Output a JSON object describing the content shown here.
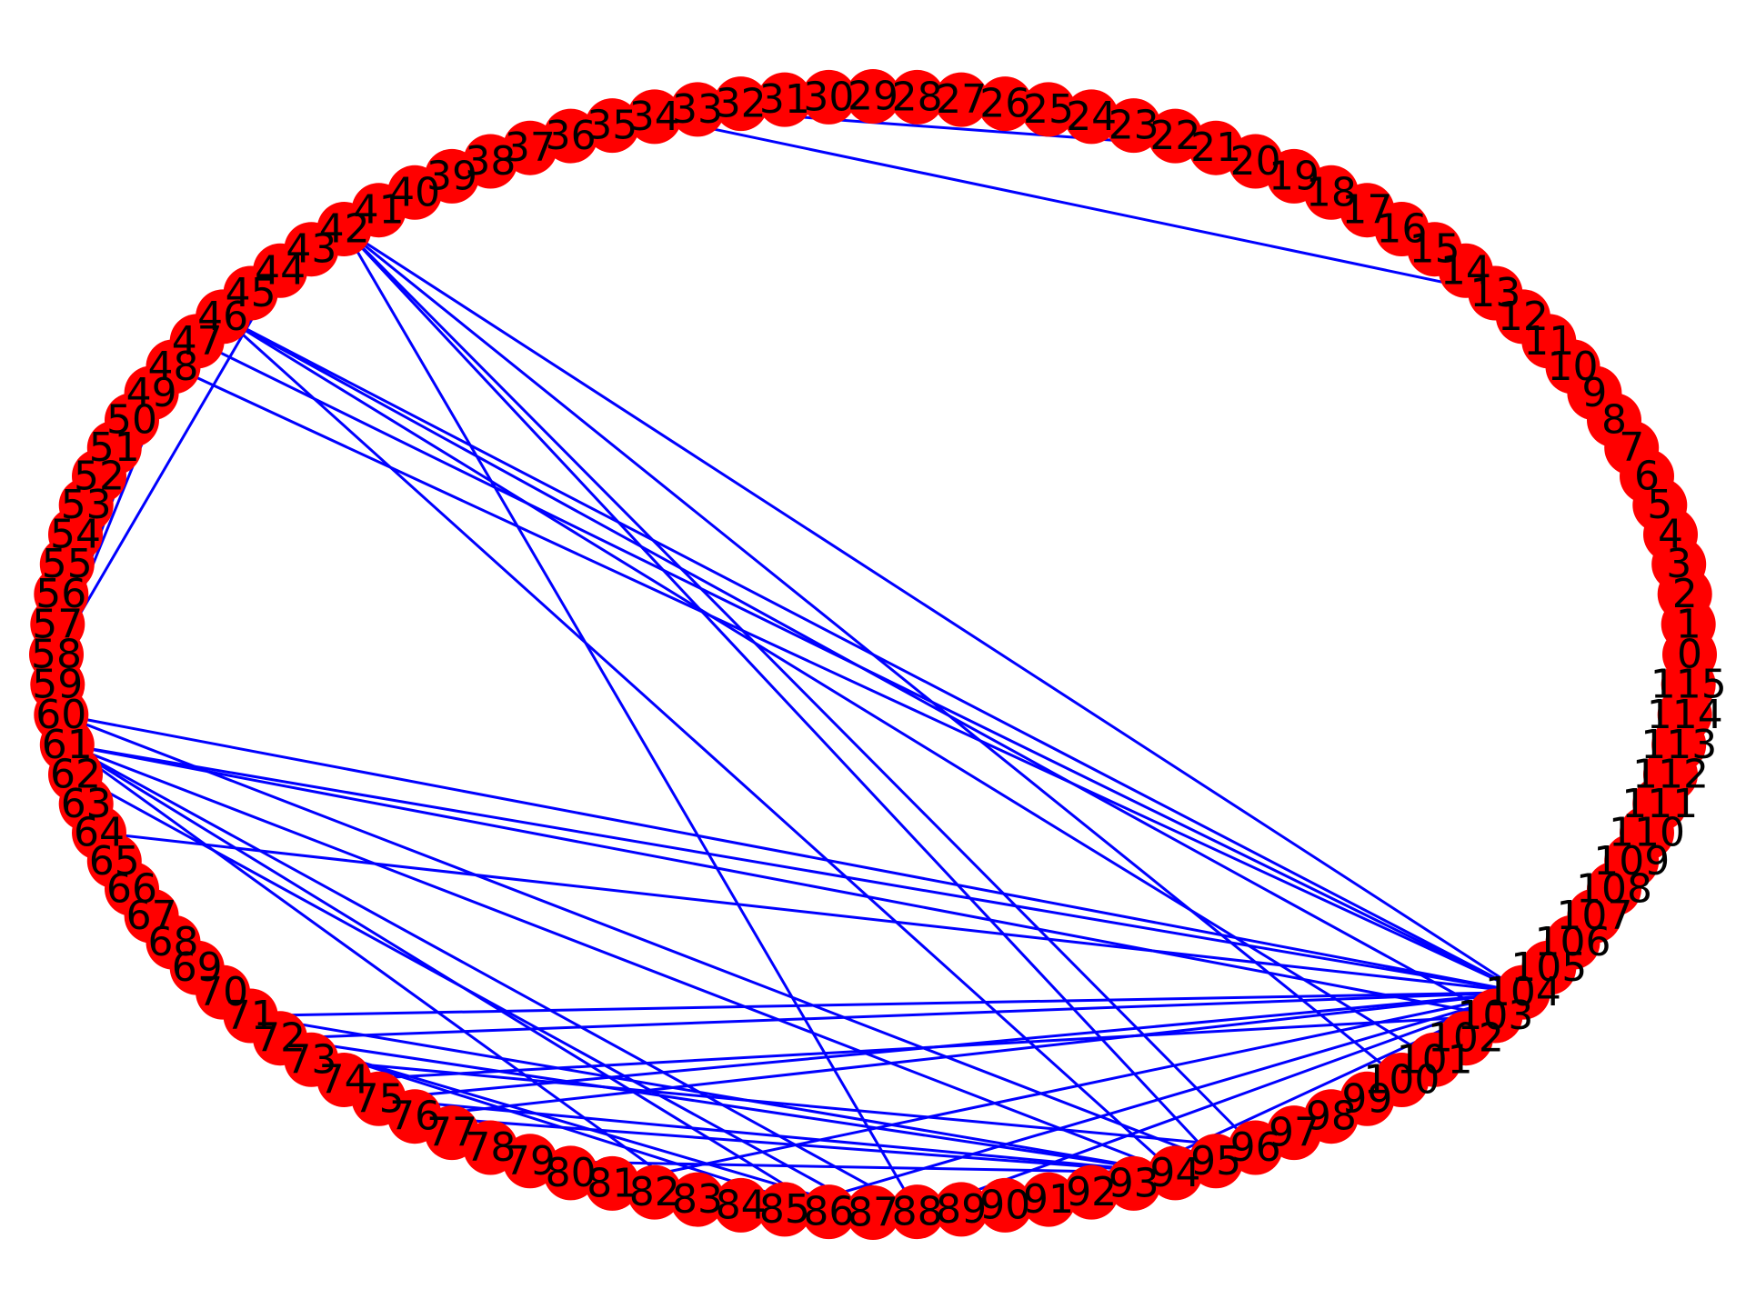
{
  "diagram": {
    "type": "circular-graph",
    "node_count": 116,
    "node_color": "#ff0000",
    "edge_color": "#0000ff",
    "label_color": "#000000",
    "nodes": [
      "0",
      "1",
      "2",
      "3",
      "4",
      "5",
      "6",
      "7",
      "8",
      "9",
      "10",
      "11",
      "12",
      "13",
      "14",
      "15",
      "16",
      "17",
      "18",
      "19",
      "20",
      "21",
      "22",
      "23",
      "24",
      "25",
      "26",
      "27",
      "28",
      "29",
      "30",
      "31",
      "32",
      "33",
      "34",
      "35",
      "36",
      "37",
      "38",
      "39",
      "40",
      "41",
      "42",
      "43",
      "44",
      "45",
      "46",
      "47",
      "48",
      "49",
      "50",
      "51",
      "52",
      "53",
      "54",
      "55",
      "56",
      "57",
      "58",
      "59",
      "60",
      "61",
      "62",
      "63",
      "64",
      "65",
      "66",
      "67",
      "68",
      "69",
      "70",
      "71",
      "72",
      "73",
      "74",
      "75",
      "76",
      "77",
      "78",
      "79",
      "80",
      "81",
      "82",
      "83",
      "84",
      "85",
      "86",
      "87",
      "88",
      "89",
      "90",
      "91",
      "92",
      "93",
      "94",
      "95",
      "96",
      "97",
      "98",
      "99",
      "100",
      "101",
      "102",
      "103",
      "104",
      "105",
      "106",
      "107",
      "108",
      "109",
      "110",
      "111",
      "112",
      "113",
      "114",
      "115"
    ],
    "edges": [
      [
        34,
        13
      ],
      [
        33,
        21
      ],
      [
        42,
        96
      ],
      [
        42,
        95
      ],
      [
        42,
        100
      ],
      [
        42,
        104
      ],
      [
        42,
        88
      ],
      [
        46,
        94
      ],
      [
        46,
        101
      ],
      [
        46,
        104
      ],
      [
        46,
        103
      ],
      [
        47,
        104
      ],
      [
        48,
        104
      ],
      [
        44,
        58
      ],
      [
        48,
        58
      ],
      [
        49,
        58
      ],
      [
        50,
        58
      ],
      [
        60,
        104
      ],
      [
        60,
        95
      ],
      [
        61,
        104
      ],
      [
        61,
        86
      ],
      [
        61,
        88
      ],
      [
        61,
        94
      ],
      [
        61,
        103
      ],
      [
        61,
        83
      ],
      [
        62,
        87
      ],
      [
        63,
        70
      ],
      [
        64,
        104
      ],
      [
        71,
        104
      ],
      [
        71,
        94
      ],
      [
        72,
        104
      ],
      [
        72,
        94
      ],
      [
        72,
        87
      ],
      [
        72,
        86
      ],
      [
        73,
        96
      ],
      [
        74,
        103
      ],
      [
        75,
        104
      ],
      [
        76,
        104
      ],
      [
        75,
        94
      ],
      [
        76,
        94
      ],
      [
        79,
        94
      ],
      [
        81,
        104
      ],
      [
        85,
        104
      ],
      [
        88,
        104
      ],
      [
        92,
        104
      ],
      [
        96,
        104
      ]
    ]
  }
}
